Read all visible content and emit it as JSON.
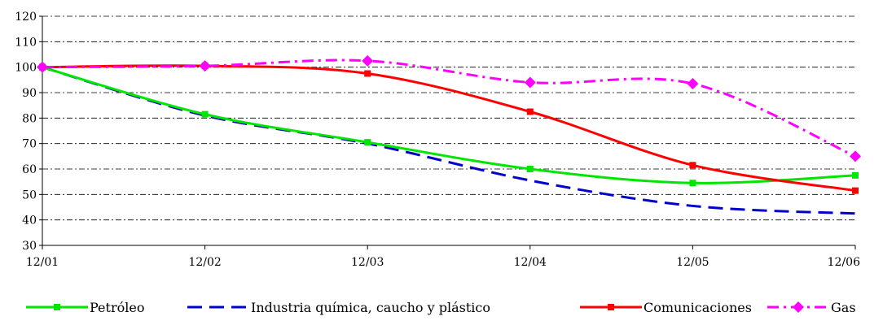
{
  "chart_data": {
    "type": "line",
    "x": [
      "12/01",
      "12/02",
      "12/03",
      "12/04",
      "12/05",
      "12/06"
    ],
    "ylim": [
      30,
      120
    ],
    "yticks": [
      30,
      40,
      50,
      60,
      70,
      80,
      90,
      100,
      110,
      120
    ],
    "grid": "horizontal-dashed",
    "legend_position": "bottom",
    "series": [
      {
        "name": "Petróleo",
        "color": "#00e600",
        "line_style": "solid",
        "marker": "square",
        "values": [
          100,
          81.5,
          70.5,
          60,
          54.5,
          57.5
        ]
      },
      {
        "name": "Industria química, caucho y plástico",
        "color": "#0000cc",
        "line_style": "dashed",
        "marker": "none",
        "values": [
          100,
          81,
          70,
          55.5,
          45.5,
          42.5
        ]
      },
      {
        "name": "Comunicaciones",
        "color": "#ff0000",
        "line_style": "solid",
        "marker": "square",
        "values": [
          100,
          100.5,
          97.5,
          82.5,
          61.5,
          51.5
        ]
      },
      {
        "name": "Gas",
        "color": "#ff00ff",
        "line_style": "dash-dot",
        "marker": "diamond",
        "values": [
          100,
          100.5,
          102.5,
          94,
          93.5,
          65
        ]
      }
    ]
  }
}
